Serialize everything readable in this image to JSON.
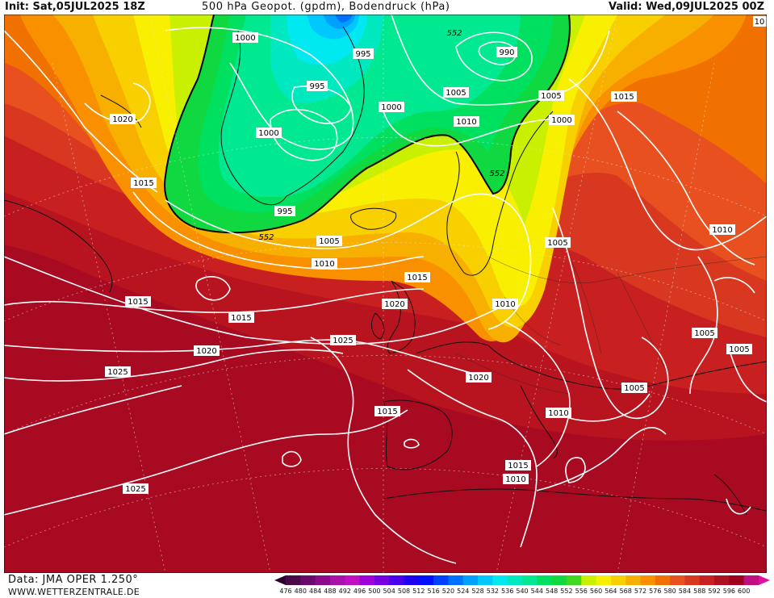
{
  "header": {
    "init": "Init: Sat,05JUL2025 18Z",
    "title": "500 hPa Geopot. (gpdm), Bodendruck (hPa)",
    "valid": "Valid: Wed,09JUL2025 00Z"
  },
  "footer": {
    "data_source": "Data: JMA OPER 1.250°",
    "website": "WWW.WETTERZENTRALE.DE"
  },
  "color_scale": {
    "ticks": [
      "476",
      "480",
      "484",
      "488",
      "492",
      "496",
      "500",
      "504",
      "508",
      "512",
      "516",
      "520",
      "524",
      "528",
      "532",
      "536",
      "540",
      "544",
      "548",
      "552",
      "556",
      "560",
      "564",
      "568",
      "572",
      "576",
      "580",
      "584",
      "588",
      "592",
      "596",
      "600"
    ],
    "colors": [
      "#4a0a4a",
      "#6a0a6a",
      "#8a0a8a",
      "#aa10aa",
      "#c010c0",
      "#a000d8",
      "#7800e0",
      "#4a00e8",
      "#2000f0",
      "#0010f8",
      "#0040ff",
      "#0070ff",
      "#00a0ff",
      "#00c8ff",
      "#00e8f0",
      "#00e8c0",
      "#00e890",
      "#00e060",
      "#10d840",
      "#40d820",
      "#c8f000",
      "#f8f000",
      "#f8d000",
      "#f8b000",
      "#f89000",
      "#f07000",
      "#e85020",
      "#d83820",
      "#c82020",
      "#b01020",
      "#a00020",
      "#c01080"
    ]
  },
  "pressure_labels": [
    {
      "text": "1000"
    },
    {
      "text": "995"
    },
    {
      "text": "995"
    },
    {
      "text": "1000"
    },
    {
      "text": "1000"
    },
    {
      "text": "995"
    },
    {
      "text": "990"
    },
    {
      "text": "1005"
    },
    {
      "text": "1010"
    },
    {
      "text": "1005"
    },
    {
      "text": "1000"
    },
    {
      "text": "1015"
    },
    {
      "text": "1020"
    },
    {
      "text": "1015"
    },
    {
      "text": "1005"
    },
    {
      "text": "1010"
    },
    {
      "text": "1015"
    },
    {
      "text": "1020"
    },
    {
      "text": "1010"
    },
    {
      "text": "1005"
    },
    {
      "text": "1015"
    },
    {
      "text": "1015"
    },
    {
      "text": "1025"
    },
    {
      "text": "1020"
    },
    {
      "text": "1020"
    },
    {
      "text": "1025"
    },
    {
      "text": "1015"
    },
    {
      "text": "1010"
    },
    {
      "text": "1005"
    },
    {
      "text": "1005"
    },
    {
      "text": "1005"
    },
    {
      "text": "1025"
    },
    {
      "text": "1015"
    },
    {
      "text": "1010"
    },
    {
      "text": "1010"
    },
    {
      "text": "10"
    }
  ],
  "geopot_labels": [
    {
      "text": "552"
    },
    {
      "text": "552"
    },
    {
      "text": "552"
    }
  ]
}
